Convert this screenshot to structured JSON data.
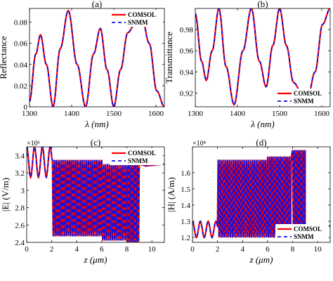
{
  "colors": {
    "comsol": "#ff0000",
    "snmm": "#1010e0"
  },
  "legend": {
    "comsol": "COMSOL",
    "snmm": "SNMM"
  },
  "chart_data": [
    {
      "type": "line",
      "title": "(a)",
      "xlabel": "λ (nm)",
      "ylabel": "Reflectance",
      "xlim": [
        1300,
        1620
      ],
      "ylim": [
        0,
        0.093
      ],
      "xticks": [
        1300,
        1400,
        1500,
        1600
      ],
      "xtick_labels": [
        "1300",
        "1400",
        "1500",
        "1600"
      ],
      "yticks": [
        0,
        0.02,
        0.04,
        0.06,
        0.08
      ],
      "ytick_labels": [
        "0",
        "0.02",
        "0.04",
        "0.06",
        "0.08"
      ],
      "legend_position": "top-right",
      "grid": false,
      "x": [
        1300,
        1315,
        1326,
        1340,
        1356,
        1373,
        1392,
        1413,
        1433,
        1452,
        1468,
        1484,
        1500,
        1516,
        1533,
        1550,
        1567,
        1584,
        1602,
        1620
      ],
      "series": [
        {
          "name": "COMSOL",
          "values": [
            0.005,
            0.05,
            0.068,
            0.04,
            0.0,
            0.055,
            0.091,
            0.04,
            0.0,
            0.05,
            0.074,
            0.035,
            0.0,
            0.035,
            0.07,
            0.078,
            0.084,
            0.06,
            0.015,
            0.0
          ]
        },
        {
          "name": "SNMM",
          "values": [
            0.005,
            0.05,
            0.068,
            0.04,
            0.0,
            0.055,
            0.091,
            0.04,
            0.0,
            0.05,
            0.074,
            0.035,
            0.0,
            0.035,
            0.07,
            0.078,
            0.084,
            0.06,
            0.015,
            0.0
          ]
        }
      ]
    },
    {
      "type": "line",
      "title": "(b)",
      "xlabel": "λ (nm)",
      "ylabel": "Transmittance",
      "xlim": [
        1300,
        1620
      ],
      "ylim": [
        0.907,
        1.0
      ],
      "xticks": [
        1300,
        1400,
        1500,
        1600
      ],
      "xtick_labels": [
        "1300",
        "1400",
        "1500",
        "1600"
      ],
      "yticks": [
        0.92,
        0.94,
        0.96,
        0.98
      ],
      "ytick_labels": [
        "0.92",
        "0.94",
        "0.96",
        "0.98"
      ],
      "legend_position": "bottom-right",
      "grid": false,
      "x": [
        1300,
        1315,
        1326,
        1340,
        1356,
        1373,
        1392,
        1413,
        1433,
        1452,
        1468,
        1484,
        1500,
        1516,
        1533,
        1550,
        1567,
        1584,
        1602,
        1620
      ],
      "series": [
        {
          "name": "COMSOL",
          "values": [
            0.995,
            0.95,
            0.932,
            0.96,
            1.0,
            0.945,
            0.909,
            0.96,
            1.0,
            0.95,
            0.926,
            0.965,
            1.0,
            0.965,
            0.93,
            0.922,
            0.916,
            0.94,
            0.985,
            1.0
          ]
        },
        {
          "name": "SNMM",
          "values": [
            0.995,
            0.95,
            0.932,
            0.96,
            1.0,
            0.945,
            0.909,
            0.96,
            1.0,
            0.95,
            0.926,
            0.965,
            1.0,
            0.965,
            0.93,
            0.922,
            0.916,
            0.94,
            0.985,
            1.0
          ]
        }
      ]
    },
    {
      "type": "line",
      "title": "(c)",
      "xlabel": "z (μm)",
      "ylabel": "|E| (V/m)",
      "multiplier": "×10⁶",
      "xlim": [
        0,
        11
      ],
      "ylim": [
        2.4,
        3.5
      ],
      "xticks": [
        0,
        2,
        4,
        6,
        8,
        10
      ],
      "xtick_labels": [
        "0",
        "2",
        "4",
        "6",
        "8",
        "10"
      ],
      "yticks": [
        2.4,
        2.6,
        2.8,
        3,
        3.2,
        3.4
      ],
      "ytick_labels": [
        "2.4",
        "2.6",
        "2.8",
        "3",
        "3.2",
        "3.4"
      ],
      "legend_position": "top-right",
      "grid": false,
      "x": [
        0,
        0.4,
        0.8,
        1.2,
        1.6,
        2.0,
        2.1,
        4.0,
        4.1,
        5.9,
        6.0,
        7.9,
        8.0,
        9.0,
        9.5,
        10.0,
        11.0
      ],
      "series": [
        {
          "name": "COMSOL",
          "values": [
            3.3,
            3.45,
            3.2,
            3.5,
            3.15,
            3.3,
            3.35,
            2.47,
            3.3,
            2.42,
            3.3,
            2.4,
            3.22,
            3.3,
            3.28,
            3.29,
            3.3
          ]
        },
        {
          "name": "SNMM",
          "values": [
            3.3,
            3.45,
            3.2,
            3.5,
            3.15,
            3.3,
            3.35,
            2.47,
            3.3,
            2.42,
            3.3,
            2.4,
            3.22,
            3.3,
            3.28,
            3.29,
            3.3
          ]
        }
      ]
    },
    {
      "type": "line",
      "title": "(d)",
      "xlabel": "z (μm)",
      "ylabel": "|H| (A/m)",
      "multiplier": "×10⁴",
      "xlim": [
        0,
        11
      ],
      "ylim": [
        1.17,
        1.76
      ],
      "xticks": [
        0,
        2,
        4,
        6,
        8,
        10
      ],
      "xtick_labels": [
        "0",
        "2",
        "4",
        "6",
        "8",
        "10"
      ],
      "yticks": [
        1.2,
        1.3,
        1.4,
        1.5,
        1.6
      ],
      "ytick_labels": [
        "1.2",
        "1.3",
        "1.4",
        "1.5",
        "1.6"
      ],
      "legend_position": "bottom-right",
      "grid": false,
      "x": [
        0,
        0.4,
        0.8,
        1.2,
        1.6,
        2.0,
        2.1,
        4.0,
        4.1,
        5.9,
        6.0,
        7.9,
        8.0,
        9.0,
        9.5,
        10.0,
        11.0
      ],
      "series": [
        {
          "name": "COMSOL",
          "values": [
            1.25,
            1.22,
            1.28,
            1.2,
            1.3,
            1.22,
            1.2,
            1.68,
            1.2,
            1.7,
            1.2,
            1.74,
            1.2,
            1.27,
            1.27,
            1.27,
            1.27
          ]
        },
        {
          "name": "SNMM",
          "values": [
            1.25,
            1.22,
            1.28,
            1.2,
            1.3,
            1.22,
            1.2,
            1.68,
            1.2,
            1.7,
            1.2,
            1.74,
            1.2,
            1.27,
            1.27,
            1.27,
            1.27
          ]
        }
      ]
    }
  ]
}
